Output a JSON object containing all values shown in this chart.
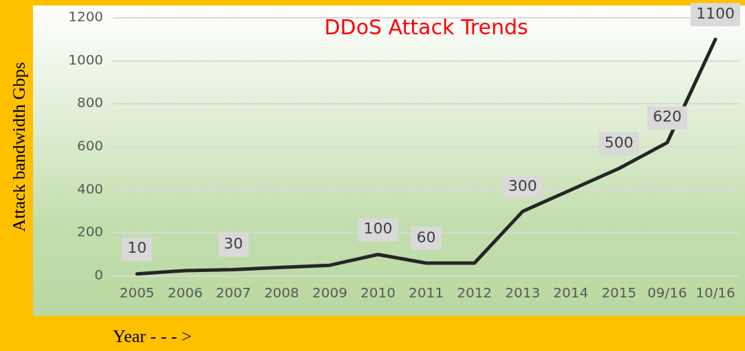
{
  "chart_data": {
    "type": "line",
    "title": "DDoS Attack Trends",
    "ylabel": "Attack bandwidth Gbps",
    "xlabel": "Year - - - >",
    "categories": [
      "2005",
      "2006",
      "2007",
      "2008",
      "2009",
      "2010",
      "2011",
      "2012",
      "2013",
      "2014",
      "2015",
      "09/16",
      "10/16"
    ],
    "series": [
      {
        "color": "#262626",
        "values": [
          10,
          25,
          30,
          40,
          50,
          100,
          60,
          60,
          300,
          400,
          500,
          620,
          1100
        ],
        "value_labels": [
          "10",
          null,
          "30",
          null,
          null,
          "100",
          "60",
          null,
          "300",
          null,
          "500",
          "620",
          "1100"
        ]
      }
    ],
    "ylim": [
      0,
      1200
    ],
    "yticks": [
      0,
      200,
      400,
      600,
      800,
      1000,
      1200
    ],
    "grid": "y",
    "legend": false,
    "marker": "none",
    "line_style": "solid"
  }
}
